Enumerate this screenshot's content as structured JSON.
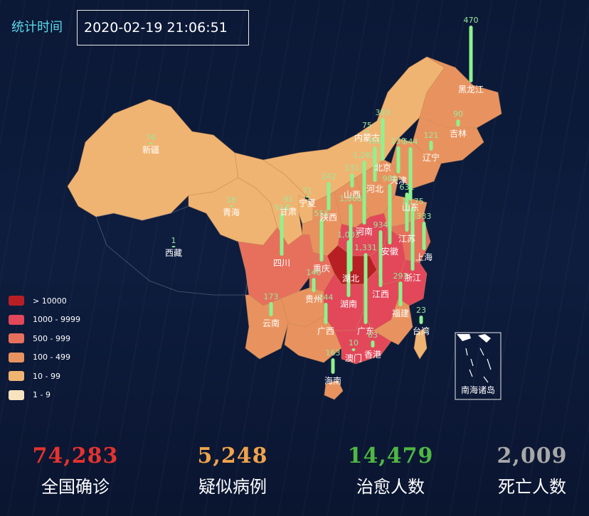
{
  "header": {
    "time_label": "统计时间",
    "time_value": "2020-02-19 21:06:51"
  },
  "legend": [
    {
      "label": "> 10000",
      "color": "#b81f25"
    },
    {
      "label": "1000 - 9999",
      "color": "#e2475a"
    },
    {
      "label": "500 - 999",
      "color": "#e6705c"
    },
    {
      "label": "100 - 499",
      "color": "#e8935f"
    },
    {
      "label": "10 - 99",
      "color": "#f0b472"
    },
    {
      "label": "1 - 9",
      "color": "#f8e3bf"
    }
  ],
  "colors": {
    "bar": "#8ef28e",
    "bar_value": "#9be89b",
    "confirmed": "#e4332e",
    "suspected": "#f0a34b",
    "cured": "#4fb843",
    "dead": "#a8a8a8"
  },
  "provinces": [
    {
      "name": "新疆",
      "value": "76"
    },
    {
      "name": "西藏",
      "value": "1"
    },
    {
      "name": "青海",
      "value": "18"
    },
    {
      "name": "甘肃",
      "value": "91"
    },
    {
      "name": "宁夏",
      "value": "71"
    },
    {
      "name": "内蒙古",
      "value": "75"
    },
    {
      "name": "黑龙江",
      "value": "470"
    },
    {
      "name": "吉林",
      "value": "90"
    },
    {
      "name": "辽宁",
      "value": "121"
    },
    {
      "name": "北京",
      "value": "393"
    },
    {
      "name": "天津",
      "value": "130"
    },
    {
      "name": "河北",
      "value": "302"
    },
    {
      "name": "山西",
      "value": "131"
    },
    {
      "name": "陕西",
      "value": "242"
    },
    {
      "name": "山东",
      "value": "544"
    },
    {
      "name": "河南",
      "value": "1,262"
    },
    {
      "name": "四川",
      "value": "514"
    },
    {
      "name": "重庆",
      "value": "555"
    },
    {
      "name": "湖北",
      "value": "1,068"
    },
    {
      "name": "安徽",
      "value": "988"
    },
    {
      "name": "江苏",
      "value": "631"
    },
    {
      "name": "上海",
      "value": "333"
    },
    {
      "name": "浙江",
      "value": "1,175"
    },
    {
      "name": "湖南",
      "value": "1,003"
    },
    {
      "name": "江西",
      "value": "934"
    },
    {
      "name": "贵州",
      "value": "146"
    },
    {
      "name": "云南",
      "value": "173"
    },
    {
      "name": "广西",
      "value": "244"
    },
    {
      "name": "广东",
      "value": "1,331"
    },
    {
      "name": "福建",
      "value": "293"
    },
    {
      "name": "台湾",
      "value": "23"
    },
    {
      "name": "香港",
      "value": "63"
    },
    {
      "name": "澳门",
      "value": "10"
    },
    {
      "name": "海南",
      "value": "163"
    }
  ],
  "inset_label": "南海诸岛",
  "stats": {
    "confirmed": {
      "value": "74,283",
      "label": "全国确诊"
    },
    "suspected": {
      "value": "5,248",
      "label": "疑似病例"
    },
    "cured": {
      "value": "14,479",
      "label": "治愈人数"
    },
    "dead": {
      "value": "2,009",
      "label": "死亡人数"
    }
  }
}
